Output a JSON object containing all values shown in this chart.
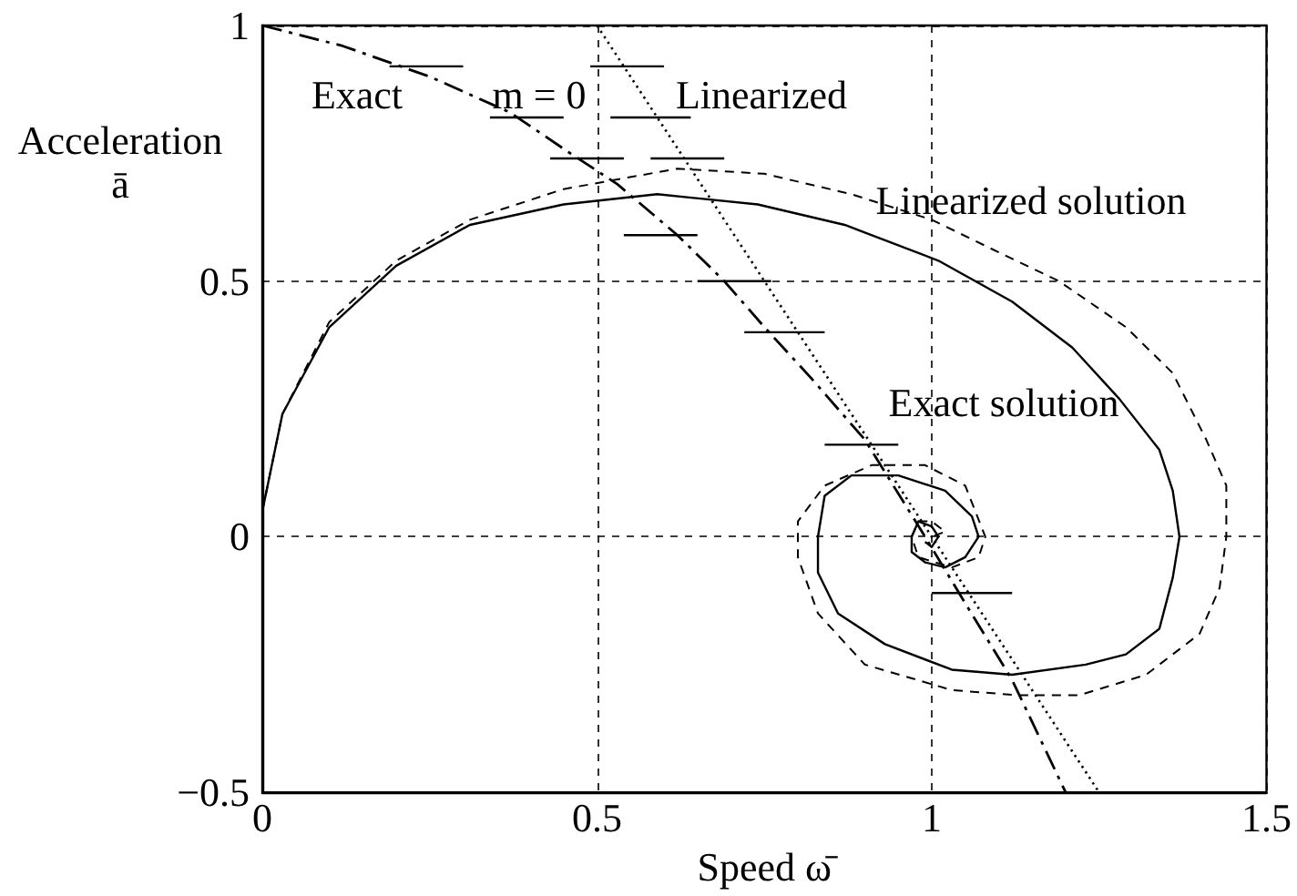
{
  "chart_data": {
    "type": "line",
    "xlabel": "Speed ω̄",
    "ylabel": "Acceleration\nā",
    "xlim": [
      0,
      1.5
    ],
    "xticks": [
      0,
      0.5,
      1,
      1.5
    ],
    "ylim": [
      -0.5,
      1
    ],
    "yticks": [
      {
        "value": -0.5,
        "label": "−0.5"
      },
      0,
      0.5,
      1
    ],
    "grid": true,
    "series": [
      {
        "color": "#000000",
        "line_style": "solid",
        "x": [
          0,
          0.03,
          0.1,
          0.2,
          0.31,
          0.45,
          0.59,
          0.74,
          0.87,
          1.01,
          1.12,
          1.21,
          1.28,
          1.34,
          1.36,
          1.37,
          1.36,
          1.34,
          1.29,
          1.23,
          1.12,
          1.03,
          0.93,
          0.86,
          0.83,
          0.83,
          0.84,
          0.88,
          0.95,
          1.02,
          1.06,
          1.07,
          1.05,
          1.02,
          0.99,
          0.97,
          0.97,
          0.98,
          1.0,
          1.01,
          1.0,
          0.99
        ],
        "values": [
          0.05,
          0.24,
          0.41,
          0.53,
          0.61,
          0.65,
          0.67,
          0.65,
          0.61,
          0.54,
          0.46,
          0.37,
          0.27,
          0.17,
          0.09,
          0,
          -0.08,
          -0.18,
          -0.23,
          -0.25,
          -0.27,
          -0.26,
          -0.21,
          -0.15,
          -0.07,
          0,
          0.08,
          0.12,
          0.12,
          0.09,
          0.04,
          0,
          -0.04,
          -0.06,
          -0.05,
          -0.03,
          0,
          0.03,
          0.02,
          0,
          -0.02,
          -0.01
        ]
      },
      {
        "color": "#000000",
        "line_style": "dashed",
        "x": [
          0,
          0.03,
          0.1,
          0.2,
          0.31,
          0.45,
          0.62,
          0.75,
          0.88,
          1.0,
          1.11,
          1.19,
          1.29,
          1.36,
          1.41,
          1.44,
          1.44,
          1.43,
          1.4,
          1.32,
          1.22,
          1.13,
          1.03,
          0.9,
          0.83,
          0.8,
          0.8,
          0.84,
          0.91,
          0.99,
          1.05,
          1.08,
          1.07,
          1.03,
          0.98,
          0.97,
          0.98,
          1.0,
          1.02,
          1.0
        ],
        "values": [
          0.05,
          0.24,
          0.42,
          0.54,
          0.62,
          0.68,
          0.72,
          0.71,
          0.67,
          0.62,
          0.55,
          0.5,
          0.41,
          0.32,
          0.19,
          0.1,
          0,
          -0.1,
          -0.19,
          -0.27,
          -0.31,
          -0.31,
          -0.3,
          -0.25,
          -0.15,
          -0.04,
          0.03,
          0.1,
          0.14,
          0.14,
          0.1,
          0,
          -0.04,
          -0.06,
          -0.04,
          0,
          0.03,
          0.03,
          0.01,
          0
        ]
      },
      {
        "color": "#000000",
        "line_style": "dashdot",
        "x": [
          0,
          0.12,
          0.25,
          0.37,
          0.46,
          0.53,
          0.62,
          0.69,
          0.75,
          0.82,
          0.9,
          0.99,
          1.05,
          1.12,
          1.2
        ],
        "values": [
          1,
          0.96,
          0.9,
          0.83,
          0.75,
          0.69,
          0.59,
          0.5,
          0.41,
          0.31,
          0.19,
          0,
          -0.13,
          -0.28,
          -0.5
        ]
      },
      {
        "color": "#000000",
        "line_style": "dotted",
        "x": [
          0.5,
          1.25
        ],
        "values": [
          1,
          -0.5
        ]
      },
      {
        "color": "#000000",
        "line_style": "solid",
        "x": [
          0.19,
          0.3,
          null,
          0.49,
          0.6,
          null,
          0.34,
          0.45,
          null,
          0.52,
          0.64,
          null,
          0.43,
          0.54,
          null,
          0.58,
          0.69,
          null,
          0.54,
          0.65,
          null,
          0.65,
          0.76,
          null,
          0.72,
          0.84,
          null,
          0.84,
          0.95,
          null,
          1.0,
          1.12
        ],
        "values": [
          0.92,
          0.92,
          null,
          0.92,
          0.92,
          null,
          0.82,
          0.82,
          null,
          0.82,
          0.82,
          null,
          0.74,
          0.74,
          null,
          0.74,
          0.74,
          null,
          0.59,
          0.59,
          null,
          0.5,
          0.5,
          null,
          0.4,
          0.4,
          null,
          0.18,
          0.18,
          null,
          -0.11,
          -0.11
        ]
      }
    ],
    "annotations": [
      "Exact",
      "m = 0",
      "Linearized",
      "Linearized solution",
      "Exact solution"
    ]
  }
}
